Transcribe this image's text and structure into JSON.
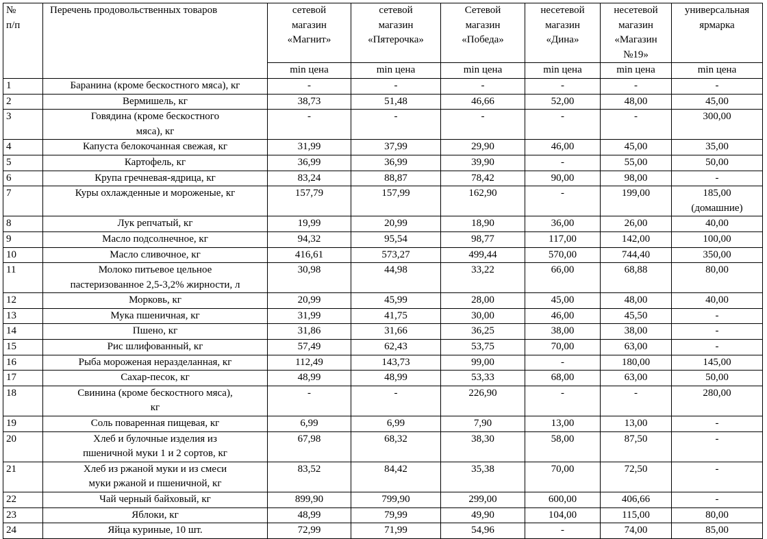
{
  "table": {
    "header": [
      "№\nп/п",
      "Перечень продовольственных товаров",
      "сетевой\nмагазин\n«Магнит»",
      "сетевой\nмагазин\n«Пятерочка»",
      "Сетевой\nмагазин\n«Победа»",
      "несетевой\nмагазин\n«Дина»",
      "несетевой\nмагазин\n«Магазин\n№19»",
      "универсальная\nярмарка"
    ],
    "subheader": [
      "min цена",
      "min цена",
      "min цена",
      "min цена",
      "min цена",
      "min цена"
    ],
    "rows": [
      [
        "1",
        "Баранина (кроме бескостного мяса), кг",
        "-",
        "-",
        "-",
        "-",
        "-",
        "-"
      ],
      [
        "2",
        "Вермишель, кг",
        "38,73",
        "51,48",
        "46,66",
        "52,00",
        "48,00",
        "45,00"
      ],
      [
        "3",
        "Говядина (кроме бескостного\nмяса), кг",
        "-",
        "-",
        "-",
        "-",
        "-",
        "300,00"
      ],
      [
        "4",
        "Капуста белокочанная свежая, кг",
        "31,99",
        "37,99",
        "29,90",
        "46,00",
        "45,00",
        "35,00"
      ],
      [
        "5",
        "Картофель, кг",
        "36,99",
        "36,99",
        "39,90",
        "-",
        "55,00",
        "50,00"
      ],
      [
        "6",
        "Крупа гречневая-ядрица, кг",
        "83,24",
        "88,87",
        "78,42",
        "90,00",
        "98,00",
        "-"
      ],
      [
        "7",
        "Куры охлажденные и мороженые, кг",
        "157,79",
        "157,99",
        "162,90",
        "-",
        "199,00",
        "185,00\n(домашние)"
      ],
      [
        "8",
        "Лук репчатый, кг",
        "19,99",
        "20,99",
        "18,90",
        "36,00",
        "26,00",
        "40,00"
      ],
      [
        "9",
        "Масло подсолнечное, кг",
        "94,32",
        "95,54",
        "98,77",
        "117,00",
        "142,00",
        "100,00"
      ],
      [
        "10",
        "Масло сливочное, кг",
        "416,61",
        "573,27",
        "499,44",
        "570,00",
        "744,40",
        "350,00"
      ],
      [
        "11",
        "Молоко питьевое цельное\nпастеризованное 2,5-3,2% жирности, л",
        "30,98",
        "44,98",
        "33,22",
        "66,00",
        "68,88",
        "80,00"
      ],
      [
        "12",
        "Морковь, кг",
        "20,99",
        "45,99",
        "28,00",
        "45,00",
        "48,00",
        "40,00"
      ],
      [
        "13",
        "Мука пшеничная, кг",
        "31,99",
        "41,75",
        "30,00",
        "46,00",
        "45,50",
        "-"
      ],
      [
        "14",
        "Пшено, кг",
        "31,86",
        "31,66",
        "36,25",
        "38,00",
        "38,00",
        "-"
      ],
      [
        "15",
        "Рис шлифованный, кг",
        "57,49",
        "62,43",
        "53,75",
        "70,00",
        "63,00",
        "-"
      ],
      [
        "16",
        "Рыба мороженая неразделанная, кг",
        "112,49",
        "143,73",
        "99,00",
        "-",
        "180,00",
        "145,00"
      ],
      [
        "17",
        "Сахар-песок, кг",
        "48,99",
        "48,99",
        "53,33",
        "68,00",
        "63,00",
        "50,00"
      ],
      [
        "18",
        "Свинина (кроме бескостного мяса),\nкг",
        "-",
        "-",
        "226,90",
        "-",
        "-",
        "280,00"
      ],
      [
        "19",
        "Соль поваренная пищевая, кг",
        "6,99",
        "6,99",
        "7,90",
        "13,00",
        "13,00",
        "-"
      ],
      [
        "20",
        "Хлеб и булочные изделия из\nпшеничной муки 1 и 2 сортов, кг",
        "67,98",
        "68,32",
        "38,30",
        "58,00",
        "87,50",
        "-"
      ],
      [
        "21",
        "Хлеб из ржаной муки и из смеси\nмуки ржаной и пшеничной, кг",
        "83,52",
        "84,42",
        "35,38",
        "70,00",
        "72,50",
        "-"
      ],
      [
        "22",
        "Чай черный байховый, кг",
        "899,90",
        "799,90",
        "299,00",
        "600,00",
        "406,66",
        "-"
      ],
      [
        "23",
        "Яблоки, кг",
        "48,99",
        "79,99",
        "49,90",
        "104,00",
        "115,00",
        "80,00"
      ],
      [
        "24",
        "Яйца куриные, 10 шт.",
        "72,99",
        "71,99",
        "54,96",
        "-",
        "74,00",
        "85,00"
      ]
    ]
  }
}
